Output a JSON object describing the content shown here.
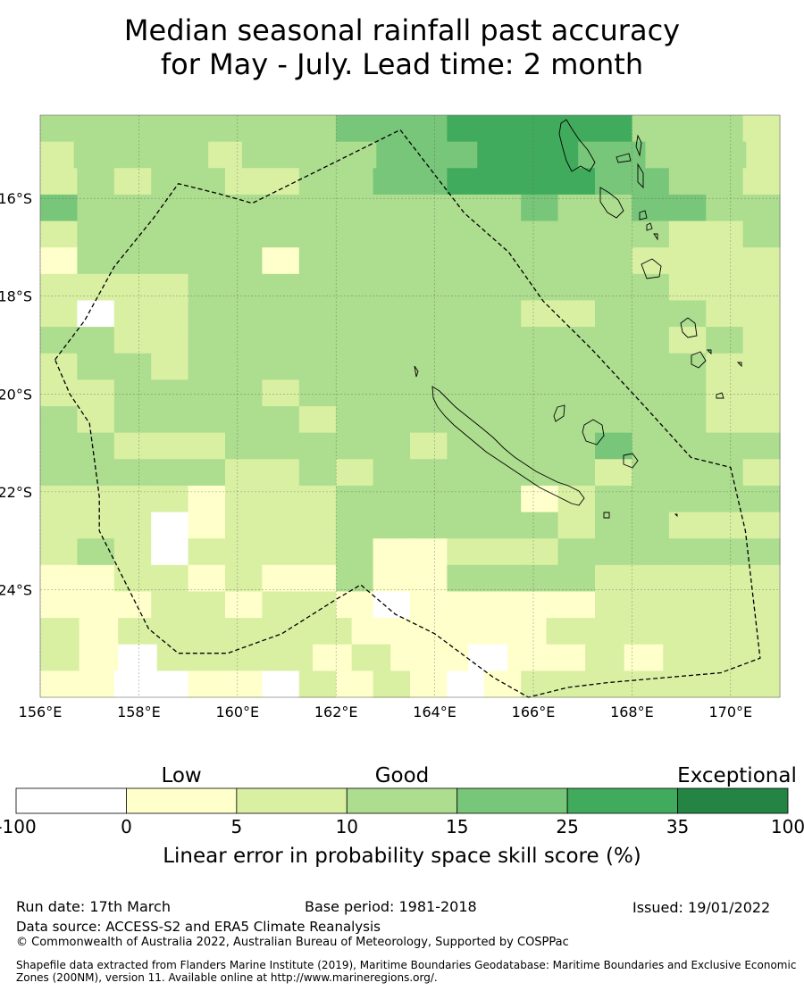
{
  "title": {
    "line1": "Median seasonal rainfall past accuracy",
    "line2": "for May - July. Lead time: 2 month"
  },
  "map": {
    "lon_range": [
      156,
      171
    ],
    "lat_range": [
      -26.2,
      -14.3
    ],
    "x_ticks": [
      "156°E",
      "158°E",
      "160°E",
      "162°E",
      "164°E",
      "166°E",
      "168°E",
      "170°E"
    ],
    "x_tick_values": [
      156,
      158,
      160,
      162,
      164,
      166,
      168,
      170
    ],
    "y_ticks": [
      "16°S",
      "18°S",
      "20°S",
      "22°S",
      "24°S"
    ],
    "y_tick_values": [
      -16,
      -18,
      -20,
      -22,
      -24
    ],
    "grid": [
      "33333333444555553332",
      "2333323333444555443332",
      "23233223344555544332",
      "43333333333334334433",
      "23333333333333333223",
      "13333313333333332222",
      "22223333333333333222",
      "20223333333332233322",
      "33223333333333333232",
      "23323333333333333322",
      "22333323333333333322",
      "32333332333333333322",
      "33222333332333343333",
      "33333223233333323332",
      "22221222333331233333",
      "22201222333333233222",
      "23202222311222333333",
      "11221211311333322222",
      "11122122101111122222",
      "2122222211111222222",
      "2102222121101121222",
      "11001102121012222222"
    ],
    "eez_lonlat": [
      [
        156.3,
        -19.3
      ],
      [
        156.9,
        -18.5
      ],
      [
        157.5,
        -17.4
      ],
      [
        158.3,
        -16.4
      ],
      [
        158.8,
        -15.7
      ],
      [
        159.6,
        -15.9
      ],
      [
        160.3,
        -16.1
      ],
      [
        163.3,
        -14.6
      ],
      [
        164.6,
        -16.3
      ],
      [
        165.5,
        -17.1
      ],
      [
        166.2,
        -18.1
      ],
      [
        167.2,
        -19.1
      ],
      [
        168.3,
        -20.3
      ],
      [
        169.2,
        -21.3
      ],
      [
        170.0,
        -21.5
      ],
      [
        170.3,
        -22.8
      ],
      [
        170.6,
        -25.4
      ],
      [
        169.8,
        -25.7
      ],
      [
        167.5,
        -25.9
      ],
      [
        166.7,
        -26.0
      ],
      [
        165.9,
        -26.2
      ],
      [
        165.2,
        -25.8
      ],
      [
        164.0,
        -24.9
      ],
      [
        163.2,
        -24.5
      ],
      [
        162.5,
        -23.9
      ],
      [
        162.0,
        -24.2
      ],
      [
        160.9,
        -24.9
      ],
      [
        159.8,
        -25.3
      ],
      [
        158.8,
        -25.3
      ],
      [
        158.2,
        -24.8
      ],
      [
        157.6,
        -23.6
      ],
      [
        157.2,
        -22.8
      ],
      [
        157.2,
        -22.1
      ],
      [
        157.0,
        -20.6
      ],
      [
        156.6,
        -20.0
      ]
    ]
  },
  "legend": {
    "category_labels": [
      "Low",
      "Good",
      "Exceptional"
    ],
    "boundaries": [
      "-100",
      "0",
      "5",
      "10",
      "15",
      "25",
      "35",
      "100"
    ],
    "colors": [
      "#ffffff",
      "#ffffcc",
      "#d9f0a3",
      "#addd8e",
      "#78c679",
      "#41ab5d",
      "#238443"
    ],
    "label": "Linear error in probability space skill score (%)"
  },
  "footer": {
    "run_date": "Run date: 17th March",
    "base_period": "Base period: 1981-2018",
    "issued": "Issued: 19/01/2022",
    "data_source": "Data source: ACCESS-S2 and ERA5 Climate Reanalysis",
    "copyright": "© Commonwealth of Australia 2022, Australian Bureau of Meteorology, Supported by COSPPac",
    "shapefile_line1": "Shapefile data extracted from Flanders Marine Institute (2019), Maritime Boundaries Geodatabase: Maritime Boundaries and Exclusive Economic",
    "shapefile_line2": "Zones (200NM), version 11. Available online at http://www.marineregions.org/."
  }
}
